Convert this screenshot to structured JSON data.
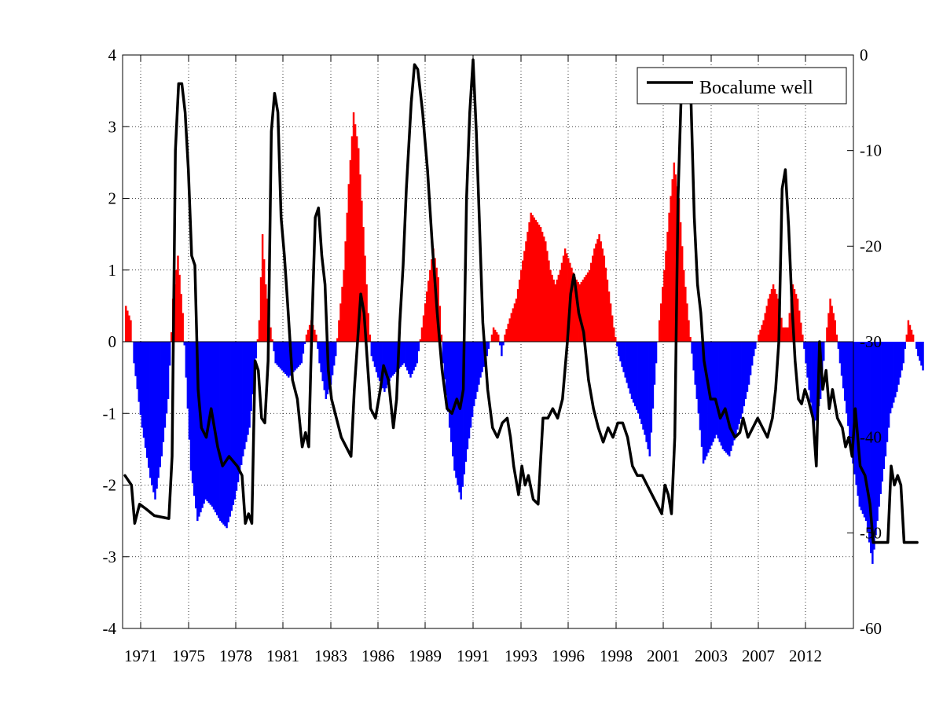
{
  "chart_data": {
    "type": "bar",
    "title": "",
    "xlabel": "",
    "ylabel_left": "",
    "ylabel_right": "",
    "grid": true,
    "legend_position": "top-right",
    "x_tick_labels": [
      "1971",
      "1975",
      "1978",
      "1981",
      "1983",
      "1986",
      "1989",
      "1991",
      "1993",
      "1996",
      "1998",
      "2001",
      "2003",
      "2007",
      "2012"
    ],
    "y_left": {
      "range": [
        -4,
        4
      ],
      "ticks": [
        "-4",
        "-3",
        "-2",
        "-1",
        "0",
        "1",
        "2",
        "3",
        "4"
      ]
    },
    "y_right": {
      "range": [
        -60,
        0
      ],
      "ticks": [
        "-60",
        "-50",
        "-40",
        "-30",
        "-20",
        "-10",
        "0"
      ]
    },
    "colors": {
      "positive": "#ff0000",
      "negative": "#0000ff",
      "line": "#000000"
    },
    "bar_series": {
      "axis": "left",
      "step": 0.1,
      "anchors": [
        [
          0,
          0.5
        ],
        [
          0.3,
          0.3
        ],
        [
          0.5,
          -0.3
        ],
        [
          1.0,
          -1.2
        ],
        [
          1.5,
          -1.9
        ],
        [
          1.8,
          -2.2
        ],
        [
          2.2,
          -1.6
        ],
        [
          2.6,
          -0.8
        ],
        [
          2.9,
          0.6
        ],
        [
          3.2,
          1.2
        ],
        [
          3.5,
          0.4
        ],
        [
          3.7,
          -0.5
        ],
        [
          4.0,
          -1.8
        ],
        [
          4.4,
          -2.5
        ],
        [
          4.9,
          -2.2
        ],
        [
          5.3,
          -2.3
        ],
        [
          5.8,
          -2.5
        ],
        [
          6.2,
          -2.6
        ],
        [
          6.7,
          -2.2
        ],
        [
          7.2,
          -1.6
        ],
        [
          7.6,
          -1.2
        ],
        [
          7.9,
          -0.5
        ],
        [
          8.2,
          0.3
        ],
        [
          8.4,
          1.5
        ],
        [
          8.6,
          0.8
        ],
        [
          8.9,
          0.2
        ],
        [
          9.2,
          -0.3
        ],
        [
          9.6,
          -0.4
        ],
        [
          10.0,
          -0.5
        ],
        [
          10.4,
          -0.4
        ],
        [
          10.8,
          -0.3
        ],
        [
          11.1,
          0.1
        ],
        [
          11.4,
          0.3
        ],
        [
          11.7,
          0.1
        ],
        [
          11.9,
          -0.3
        ],
        [
          12.3,
          -0.8
        ],
        [
          12.6,
          -0.6
        ],
        [
          12.9,
          -0.2
        ],
        [
          13.1,
          0.3
        ],
        [
          13.4,
          1.0
        ],
        [
          13.7,
          2.2
        ],
        [
          14.0,
          3.2
        ],
        [
          14.3,
          2.7
        ],
        [
          14.6,
          1.6
        ],
        [
          14.9,
          0.4
        ],
        [
          15.1,
          -0.2
        ],
        [
          15.5,
          -0.5
        ],
        [
          15.9,
          -0.7
        ],
        [
          16.3,
          -0.5
        ],
        [
          16.7,
          -0.4
        ],
        [
          17.1,
          -0.3
        ],
        [
          17.5,
          -0.5
        ],
        [
          17.9,
          -0.3
        ],
        [
          18.2,
          0.2
        ],
        [
          18.5,
          0.7
        ],
        [
          18.9,
          1.3
        ],
        [
          19.2,
          0.9
        ],
        [
          19.5,
          -0.3
        ],
        [
          19.9,
          -1.2
        ],
        [
          20.2,
          -1.8
        ],
        [
          20.6,
          -2.2
        ],
        [
          21.0,
          -1.5
        ],
        [
          21.4,
          -0.9
        ],
        [
          21.8,
          -0.5
        ],
        [
          22.2,
          -0.2
        ],
        [
          22.6,
          0.2
        ],
        [
          22.9,
          0.1
        ],
        [
          23.1,
          -0.2
        ],
        [
          23.3,
          0.1
        ],
        [
          23.7,
          0.4
        ],
        [
          24.0,
          0.6
        ],
        [
          24.3,
          1.0
        ],
        [
          24.6,
          1.4
        ],
        [
          24.9,
          1.8
        ],
        [
          25.2,
          1.7
        ],
        [
          25.5,
          1.6
        ],
        [
          25.8,
          1.4
        ],
        [
          26.1,
          1.0
        ],
        [
          26.4,
          0.8
        ],
        [
          26.7,
          1.0
        ],
        [
          27.0,
          1.3
        ],
        [
          27.3,
          1.1
        ],
        [
          27.6,
          0.9
        ],
        [
          27.9,
          0.8
        ],
        [
          28.2,
          0.9
        ],
        [
          28.5,
          1.0
        ],
        [
          28.8,
          1.3
        ],
        [
          29.1,
          1.5
        ],
        [
          29.4,
          1.2
        ],
        [
          29.7,
          0.7
        ],
        [
          30.0,
          0.2
        ],
        [
          30.3,
          -0.2
        ],
        [
          30.7,
          -0.5
        ],
        [
          31.1,
          -0.8
        ],
        [
          31.5,
          -1.0
        ],
        [
          31.9,
          -1.3
        ],
        [
          32.2,
          -1.6
        ],
        [
          32.5,
          -0.6
        ],
        [
          32.8,
          0.3
        ],
        [
          33.1,
          1.0
        ],
        [
          33.4,
          1.8
        ],
        [
          33.7,
          2.5
        ],
        [
          34.0,
          2.0
        ],
        [
          34.3,
          1.0
        ],
        [
          34.6,
          0.3
        ],
        [
          34.9,
          -0.4
        ],
        [
          35.2,
          -1.0
        ],
        [
          35.5,
          -1.7
        ],
        [
          35.9,
          -1.5
        ],
        [
          36.3,
          -1.3
        ],
        [
          36.7,
          -1.5
        ],
        [
          37.1,
          -1.6
        ],
        [
          37.5,
          -1.3
        ],
        [
          37.9,
          -1.0
        ],
        [
          38.3,
          -0.6
        ],
        [
          38.6,
          -0.2
        ],
        [
          38.9,
          0.1
        ],
        [
          39.2,
          0.3
        ],
        [
          39.5,
          0.6
        ],
        [
          39.8,
          0.8
        ],
        [
          40.1,
          0.6
        ],
        [
          40.4,
          0.2
        ],
        [
          40.7,
          0.2
        ],
        [
          41.0,
          0.8
        ],
        [
          41.3,
          0.6
        ],
        [
          41.6,
          0.1
        ],
        [
          41.9,
          -0.5
        ],
        [
          42.3,
          -1.2
        ],
        [
          42.7,
          -0.8
        ],
        [
          43.0,
          0.0
        ],
        [
          43.3,
          0.6
        ],
        [
          43.6,
          0.3
        ],
        [
          43.9,
          -0.3
        ],
        [
          44.3,
          -1.0
        ],
        [
          44.7,
          -1.7
        ],
        [
          45.1,
          -2.3
        ],
        [
          45.5,
          -2.5
        ],
        [
          45.9,
          -3.1
        ],
        [
          46.3,
          -2.3
        ],
        [
          46.7,
          -1.6
        ],
        [
          47.0,
          -1.0
        ],
        [
          47.4,
          -0.7
        ],
        [
          47.8,
          -0.3
        ],
        [
          48.1,
          0.3
        ],
        [
          48.4,
          0.1
        ],
        [
          48.7,
          -0.2
        ],
        [
          49.0,
          -0.4
        ]
      ]
    },
    "line_series": {
      "name": "Bocalume well",
      "axis": "right",
      "points": [
        [
          0,
          -44
        ],
        [
          0.4,
          -45
        ],
        [
          0.6,
          -49
        ],
        [
          0.9,
          -47
        ],
        [
          1.3,
          -47.5
        ],
        [
          1.8,
          -48.2
        ],
        [
          2.4,
          -48.4
        ],
        [
          2.7,
          -48.5
        ],
        [
          2.9,
          -42
        ],
        [
          3.1,
          -10
        ],
        [
          3.3,
          -3
        ],
        [
          3.5,
          -3
        ],
        [
          3.7,
          -6
        ],
        [
          3.9,
          -12
        ],
        [
          4.1,
          -21
        ],
        [
          4.3,
          -22
        ],
        [
          4.5,
          -35
        ],
        [
          4.7,
          -39
        ],
        [
          5.0,
          -40
        ],
        [
          5.3,
          -37
        ],
        [
          5.7,
          -41
        ],
        [
          6.0,
          -43
        ],
        [
          6.4,
          -42
        ],
        [
          6.9,
          -43
        ],
        [
          7.2,
          -44
        ],
        [
          7.4,
          -49
        ],
        [
          7.6,
          -48
        ],
        [
          7.8,
          -49
        ],
        [
          8.0,
          -32
        ],
        [
          8.2,
          -33
        ],
        [
          8.4,
          -38
        ],
        [
          8.6,
          -38.5
        ],
        [
          8.8,
          -32
        ],
        [
          9.0,
          -8
        ],
        [
          9.2,
          -4
        ],
        [
          9.4,
          -6
        ],
        [
          9.6,
          -17
        ],
        [
          9.8,
          -21
        ],
        [
          10.0,
          -26
        ],
        [
          10.3,
          -34
        ],
        [
          10.6,
          -36
        ],
        [
          10.9,
          -41
        ],
        [
          11.1,
          -39.5
        ],
        [
          11.3,
          -41
        ],
        [
          11.5,
          -28
        ],
        [
          11.7,
          -17
        ],
        [
          11.9,
          -16
        ],
        [
          12.1,
          -21
        ],
        [
          12.3,
          -24
        ],
        [
          12.5,
          -33
        ],
        [
          12.7,
          -36
        ],
        [
          13.0,
          -38
        ],
        [
          13.3,
          -40
        ],
        [
          13.6,
          -41
        ],
        [
          13.9,
          -42
        ],
        [
          14.1,
          -35
        ],
        [
          14.3,
          -30
        ],
        [
          14.5,
          -25
        ],
        [
          14.7,
          -27
        ],
        [
          14.9,
          -32
        ],
        [
          15.1,
          -37
        ],
        [
          15.4,
          -38
        ],
        [
          15.7,
          -35
        ],
        [
          15.9,
          -32.5
        ],
        [
          16.2,
          -34
        ],
        [
          16.5,
          -39
        ],
        [
          16.7,
          -36
        ],
        [
          16.9,
          -28
        ],
        [
          17.1,
          -22
        ],
        [
          17.3,
          -14
        ],
        [
          17.6,
          -5
        ],
        [
          17.8,
          -1
        ],
        [
          18.0,
          -1.5
        ],
        [
          18.3,
          -6
        ],
        [
          18.6,
          -12
        ],
        [
          18.9,
          -20
        ],
        [
          19.2,
          -27
        ],
        [
          19.5,
          -33
        ],
        [
          19.8,
          -37
        ],
        [
          20.1,
          -37.5
        ],
        [
          20.4,
          -36
        ],
        [
          20.6,
          -37
        ],
        [
          20.8,
          -35
        ],
        [
          21.0,
          -15
        ],
        [
          21.2,
          -6
        ],
        [
          21.4,
          -0.5
        ],
        [
          21.6,
          -8
        ],
        [
          21.8,
          -18
        ],
        [
          22.0,
          -28
        ],
        [
          22.3,
          -35
        ],
        [
          22.6,
          -39
        ],
        [
          22.9,
          -40
        ],
        [
          23.2,
          -38.5
        ],
        [
          23.5,
          -38
        ],
        [
          23.7,
          -40
        ],
        [
          23.9,
          -43
        ],
        [
          24.2,
          -46
        ],
        [
          24.4,
          -43
        ],
        [
          24.6,
          -45
        ],
        [
          24.8,
          -44
        ],
        [
          25.1,
          -46.5
        ],
        [
          25.4,
          -47
        ],
        [
          25.7,
          -38
        ],
        [
          26.0,
          -38
        ],
        [
          26.3,
          -37
        ],
        [
          26.6,
          -38
        ],
        [
          26.9,
          -36
        ],
        [
          27.2,
          -30
        ],
        [
          27.4,
          -25
        ],
        [
          27.6,
          -23
        ],
        [
          27.9,
          -27
        ],
        [
          28.2,
          -29
        ],
        [
          28.5,
          -34
        ],
        [
          28.8,
          -37
        ],
        [
          29.1,
          -39
        ],
        [
          29.4,
          -40.5
        ],
        [
          29.7,
          -39
        ],
        [
          30.0,
          -40
        ],
        [
          30.3,
          -38.5
        ],
        [
          30.6,
          -38.5
        ],
        [
          30.9,
          -40
        ],
        [
          31.2,
          -43
        ],
        [
          31.5,
          -44
        ],
        [
          31.8,
          -44
        ],
        [
          32.1,
          -45
        ],
        [
          32.4,
          -46
        ],
        [
          32.7,
          -47
        ],
        [
          33.0,
          -48
        ],
        [
          33.2,
          -45
        ],
        [
          33.4,
          -46
        ],
        [
          33.6,
          -48
        ],
        [
          33.8,
          -40
        ],
        [
          34.0,
          -15
        ],
        [
          34.2,
          -4
        ],
        [
          34.4,
          -3
        ],
        [
          34.6,
          -5
        ],
        [
          34.8,
          -5
        ],
        [
          35.0,
          -17
        ],
        [
          35.2,
          -24
        ],
        [
          35.4,
          -27
        ],
        [
          35.6,
          -32
        ],
        [
          35.8,
          -34
        ],
        [
          36.0,
          -36
        ],
        [
          36.3,
          -36
        ],
        [
          36.6,
          -38
        ],
        [
          36.9,
          -37
        ],
        [
          37.2,
          -39
        ],
        [
          37.5,
          -40
        ],
        [
          37.8,
          -39.5
        ],
        [
          38.0,
          -38
        ],
        [
          38.3,
          -40
        ],
        [
          38.6,
          -39
        ],
        [
          38.9,
          -38
        ],
        [
          39.2,
          -39
        ],
        [
          39.5,
          -40
        ],
        [
          39.8,
          -38
        ],
        [
          40.0,
          -35
        ],
        [
          40.2,
          -30
        ],
        [
          40.4,
          -14
        ],
        [
          40.6,
          -12
        ],
        [
          40.8,
          -18
        ],
        [
          41.0,
          -26
        ],
        [
          41.2,
          -32
        ],
        [
          41.4,
          -36
        ],
        [
          41.6,
          -36.5
        ],
        [
          41.8,
          -35
        ],
        [
          42.0,
          -36
        ],
        [
          42.3,
          -38
        ],
        [
          42.5,
          -43
        ],
        [
          42.7,
          -30
        ],
        [
          42.9,
          -35
        ],
        [
          43.1,
          -33
        ],
        [
          43.3,
          -37
        ],
        [
          43.5,
          -35
        ],
        [
          43.8,
          -38
        ],
        [
          44.1,
          -39
        ],
        [
          44.3,
          -41
        ],
        [
          44.5,
          -40
        ],
        [
          44.7,
          -42
        ],
        [
          44.9,
          -37
        ],
        [
          45.2,
          -43
        ],
        [
          45.5,
          -44
        ],
        [
          45.8,
          -47
        ],
        [
          46.0,
          -51
        ],
        [
          46.3,
          -51
        ],
        [
          46.6,
          -51
        ],
        [
          46.9,
          -51
        ],
        [
          47.1,
          -43
        ],
        [
          47.3,
          -45
        ],
        [
          47.5,
          -44
        ],
        [
          47.7,
          -45
        ],
        [
          47.9,
          -51
        ],
        [
          48.2,
          -51
        ],
        [
          48.5,
          -51
        ],
        [
          48.7,
          -51
        ]
      ]
    }
  }
}
